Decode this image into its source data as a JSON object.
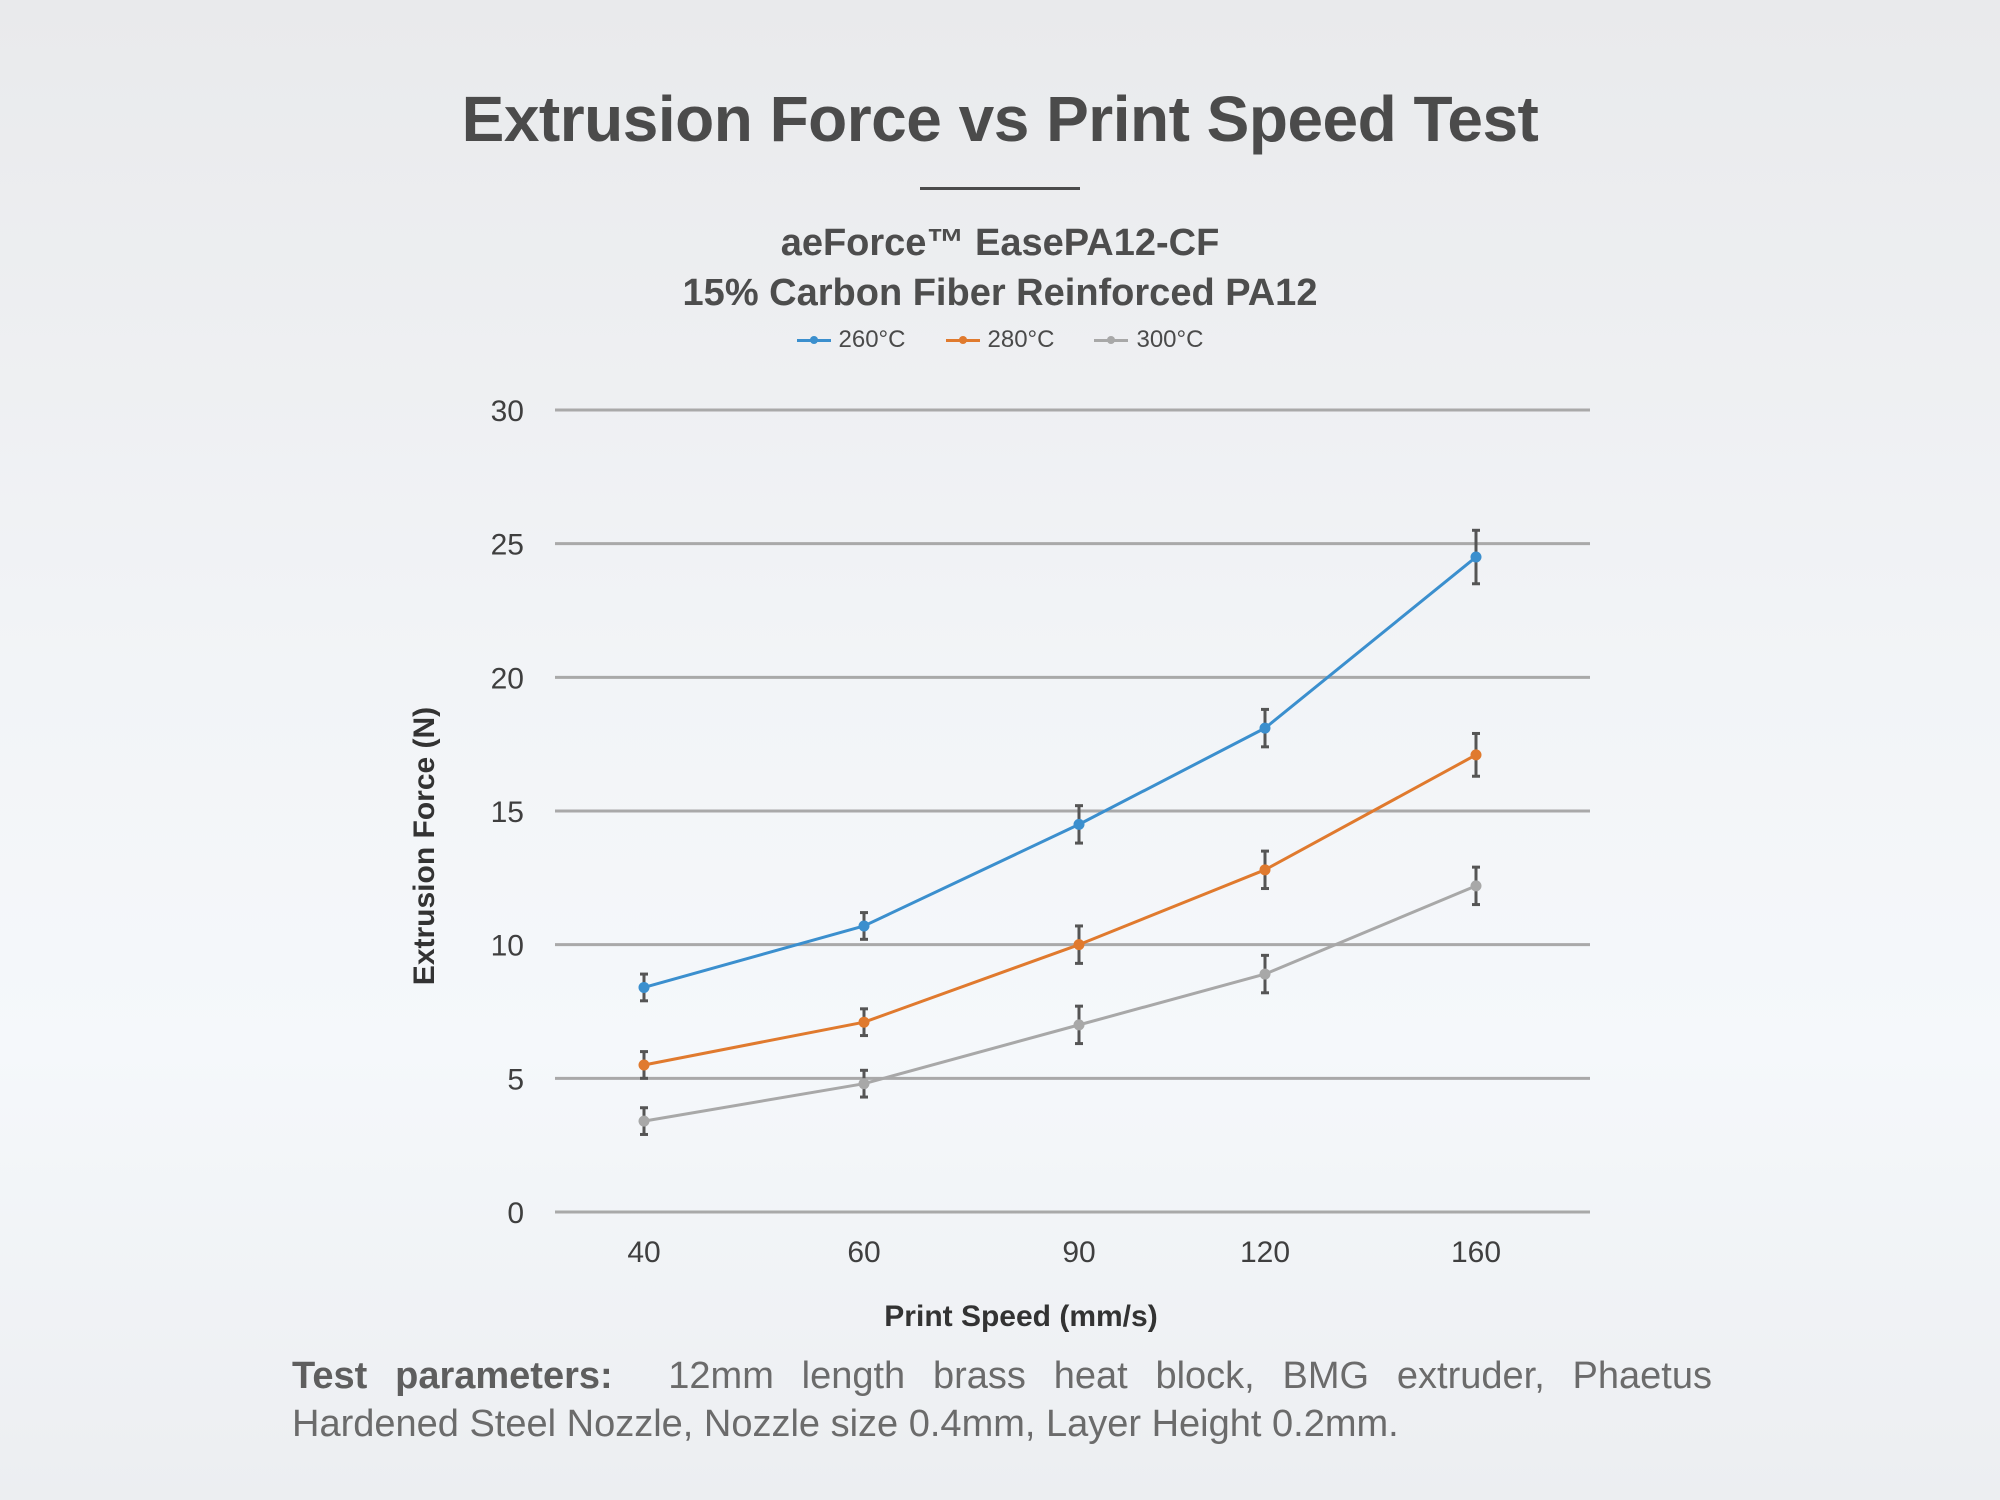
{
  "title": "Extrusion Force vs Print Speed Test",
  "subtitle_line1": "aeForce™ EasePA12-CF",
  "subtitle_line2": "15% Carbon Fiber Reinforced PA12",
  "footer": {
    "label": "Test parameters:",
    "text": "12mm length brass heat block, BMG extruder, Phaetus Hardened Steel Nozzle, Nozzle size 0.4mm, Layer Height 0.2mm."
  },
  "chart_data": {
    "type": "line",
    "title": "Extrusion Force vs Print Speed Test",
    "xlabel": "Print Speed (mm/s)",
    "ylabel": "Extrusion Force (N)",
    "categories": [
      "40",
      "60",
      "90",
      "120",
      "160"
    ],
    "ylim": [
      0,
      30
    ],
    "yticks": [
      "0",
      "5",
      "10",
      "15",
      "20",
      "25",
      "30"
    ],
    "grid": true,
    "legend_position": "top-center",
    "series": [
      {
        "name": "260°C",
        "color": "#3b8fce",
        "values": [
          8.4,
          10.7,
          14.5,
          18.1,
          24.5
        ],
        "errors": [
          0.5,
          0.5,
          0.7,
          0.7,
          1.0
        ]
      },
      {
        "name": "280°C",
        "color": "#e07a2e",
        "values": [
          5.5,
          7.1,
          10.0,
          12.8,
          17.1
        ],
        "errors": [
          0.5,
          0.5,
          0.7,
          0.7,
          0.8
        ]
      },
      {
        "name": "300°C",
        "color": "#a8a8a8",
        "values": [
          3.4,
          4.8,
          7.0,
          8.9,
          12.2
        ],
        "errors": [
          0.5,
          0.5,
          0.7,
          0.7,
          0.7
        ]
      }
    ],
    "error_bar_color": "#555555",
    "grid_color": "#a9a9a9"
  }
}
